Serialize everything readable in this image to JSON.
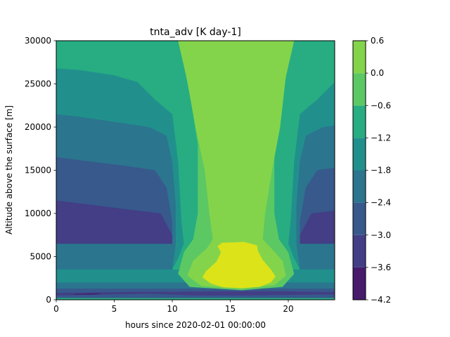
{
  "chart_data": {
    "type": "contour",
    "title": "tnta_adv [K day-1]",
    "xlabel": "hours since 2020-02-01 00:00:00",
    "ylabel": "Altitude above the surface [m]",
    "xlim": [
      0,
      24
    ],
    "ylim": [
      0,
      30000
    ],
    "x_ticks": [
      0,
      5,
      10,
      15,
      20
    ],
    "y_ticks": [
      0,
      5000,
      10000,
      15000,
      20000,
      25000,
      30000
    ],
    "grid": false,
    "colorbar": {
      "levels": [
        -4.2,
        -3.6,
        -3.0,
        -2.4,
        -1.8,
        -1.2,
        -0.6,
        0.0,
        0.6
      ],
      "tick_labels": [
        "−4.2",
        "−3.6",
        "−3.0",
        "−2.4",
        "−1.8",
        "−1.2",
        "−0.6",
        "0.0",
        "0.6"
      ],
      "colors": [
        "#481a6c",
        "#433e85",
        "#37598c",
        "#2b758e",
        "#21908d",
        "#27ad81",
        "#5cc863",
        "#84d44b",
        "#dce319"
      ],
      "colormap": "viridis"
    },
    "field": [
      {
        "region": "background (t 0-24 h, 0-30000 m)",
        "level_range": [
          -1.2,
          -0.6
        ]
      },
      {
        "region": "midday column, t ~11-21 h, 0-30000 m",
        "level_range": [
          -0.6,
          0.0
        ]
      },
      {
        "region": "core near t 15.5 h, ~1500-6500 m",
        "level_range": [
          0.0,
          0.6
        ]
      },
      {
        "region": "upper flanks, t 0-7 h and 21-24 h, 21000-27000 m",
        "level_range": [
          -1.8,
          -1.2
        ]
      },
      {
        "region": "flanks, t 0-10 h and 21-24 h, 3500-21500 m",
        "level_range": [
          -2.4,
          -1.8
        ]
      },
      {
        "region": "flanks, t 0-10 h and 21-24 h, 6500-16500 m",
        "level_range": [
          -3.0,
          -2.4
        ]
      },
      {
        "region": "flanks, t 0-10 h and 22-24 h, 6500-11500 m",
        "level_range": [
          -3.6,
          -3.0
        ]
      },
      {
        "region": "surface band, all t, 0-2000 m",
        "level_range": [
          -3.6,
          -2.4
        ]
      },
      {
        "region": "thin layer near 700 m, t 1-4 h",
        "level_range": [
          -4.2,
          -3.6
        ]
      }
    ]
  }
}
